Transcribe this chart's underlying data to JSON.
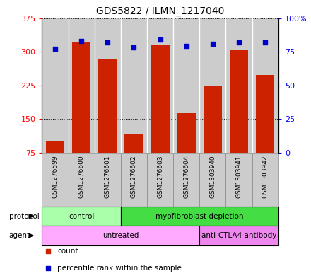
{
  "title": "GDS5822 / ILMN_1217040",
  "samples": [
    "GSM1276599",
    "GSM1276600",
    "GSM1276601",
    "GSM1276602",
    "GSM1276603",
    "GSM1276604",
    "GSM1303940",
    "GSM1303941",
    "GSM1303942"
  ],
  "counts": [
    100,
    320,
    285,
    115,
    315,
    163,
    225,
    305,
    248
  ],
  "percentiles": [
    77,
    83,
    82,
    78,
    84,
    79,
    81,
    82,
    82
  ],
  "left_ylim": [
    75,
    375
  ],
  "left_yticks": [
    75,
    150,
    225,
    300,
    375
  ],
  "right_ylim": [
    0,
    100
  ],
  "right_yticks": [
    0,
    25,
    50,
    75,
    100
  ],
  "right_yticklabels": [
    "0",
    "25",
    "50",
    "75",
    "100%"
  ],
  "bar_color": "#cc2200",
  "dot_color": "#0000cc",
  "protocol_labels": [
    {
      "text": "control",
      "start": 0,
      "end": 3,
      "color": "#aaffaa"
    },
    {
      "text": "myofibroblast depletion",
      "start": 3,
      "end": 9,
      "color": "#44dd44"
    }
  ],
  "agent_labels": [
    {
      "text": "untreated",
      "start": 0,
      "end": 6,
      "color": "#ffaaff"
    },
    {
      "text": "anti-CTLA4 antibody",
      "start": 6,
      "end": 9,
      "color": "#ee88ee"
    }
  ],
  "legend_items": [
    {
      "label": "count",
      "color": "#cc2200",
      "marker": "s"
    },
    {
      "label": "percentile rank within the sample",
      "color": "#0000cc",
      "marker": "s"
    }
  ],
  "sample_bg_color": "#cccccc",
  "sample_border_color": "#888888",
  "grid_color": "#000000",
  "background_color": "#ffffff",
  "bar_width": 0.7
}
